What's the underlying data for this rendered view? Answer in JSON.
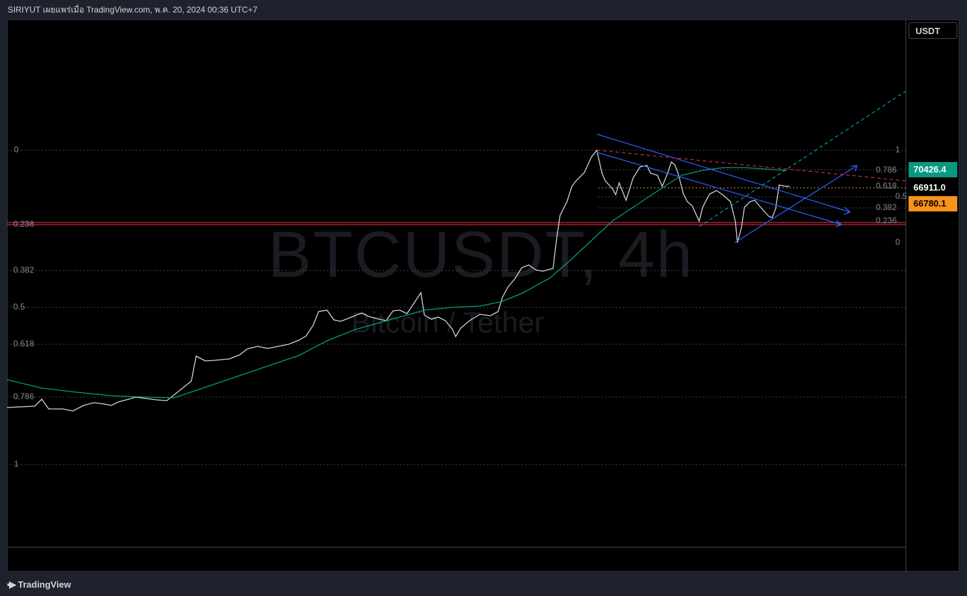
{
  "header": {
    "title": "SIRIYUT เผยแพร่เมื่อ TradingView.com, พ.ค. 20, 2024 00:36 UTC+7"
  },
  "watermark": {
    "symbol": "BTCUSDT, 4h",
    "description": "Bitcoin / Tether"
  },
  "price_axis": {
    "currency": "USDT",
    "tags": {
      "ma": "70426.4",
      "last": "66911.0",
      "low": "66780.1"
    }
  },
  "fib_left": [
    "0",
    "0.236",
    "0.382",
    "0.5",
    "0.618",
    "0.786",
    "1"
  ],
  "fib_right": [
    "1",
    "0.786",
    "0.618",
    "0.5",
    "0.382",
    "0.236",
    "0"
  ],
  "footer": {
    "brand": "TradingView",
    "logo_icon": "tradingview-logo-icon"
  },
  "colors": {
    "background": "#000000",
    "ma_line": "#089981",
    "channel": "#2962ff",
    "dashed_red": "#f23645",
    "dashed_cyan": "#00bcd4",
    "low_tag": "#f7931a"
  }
}
